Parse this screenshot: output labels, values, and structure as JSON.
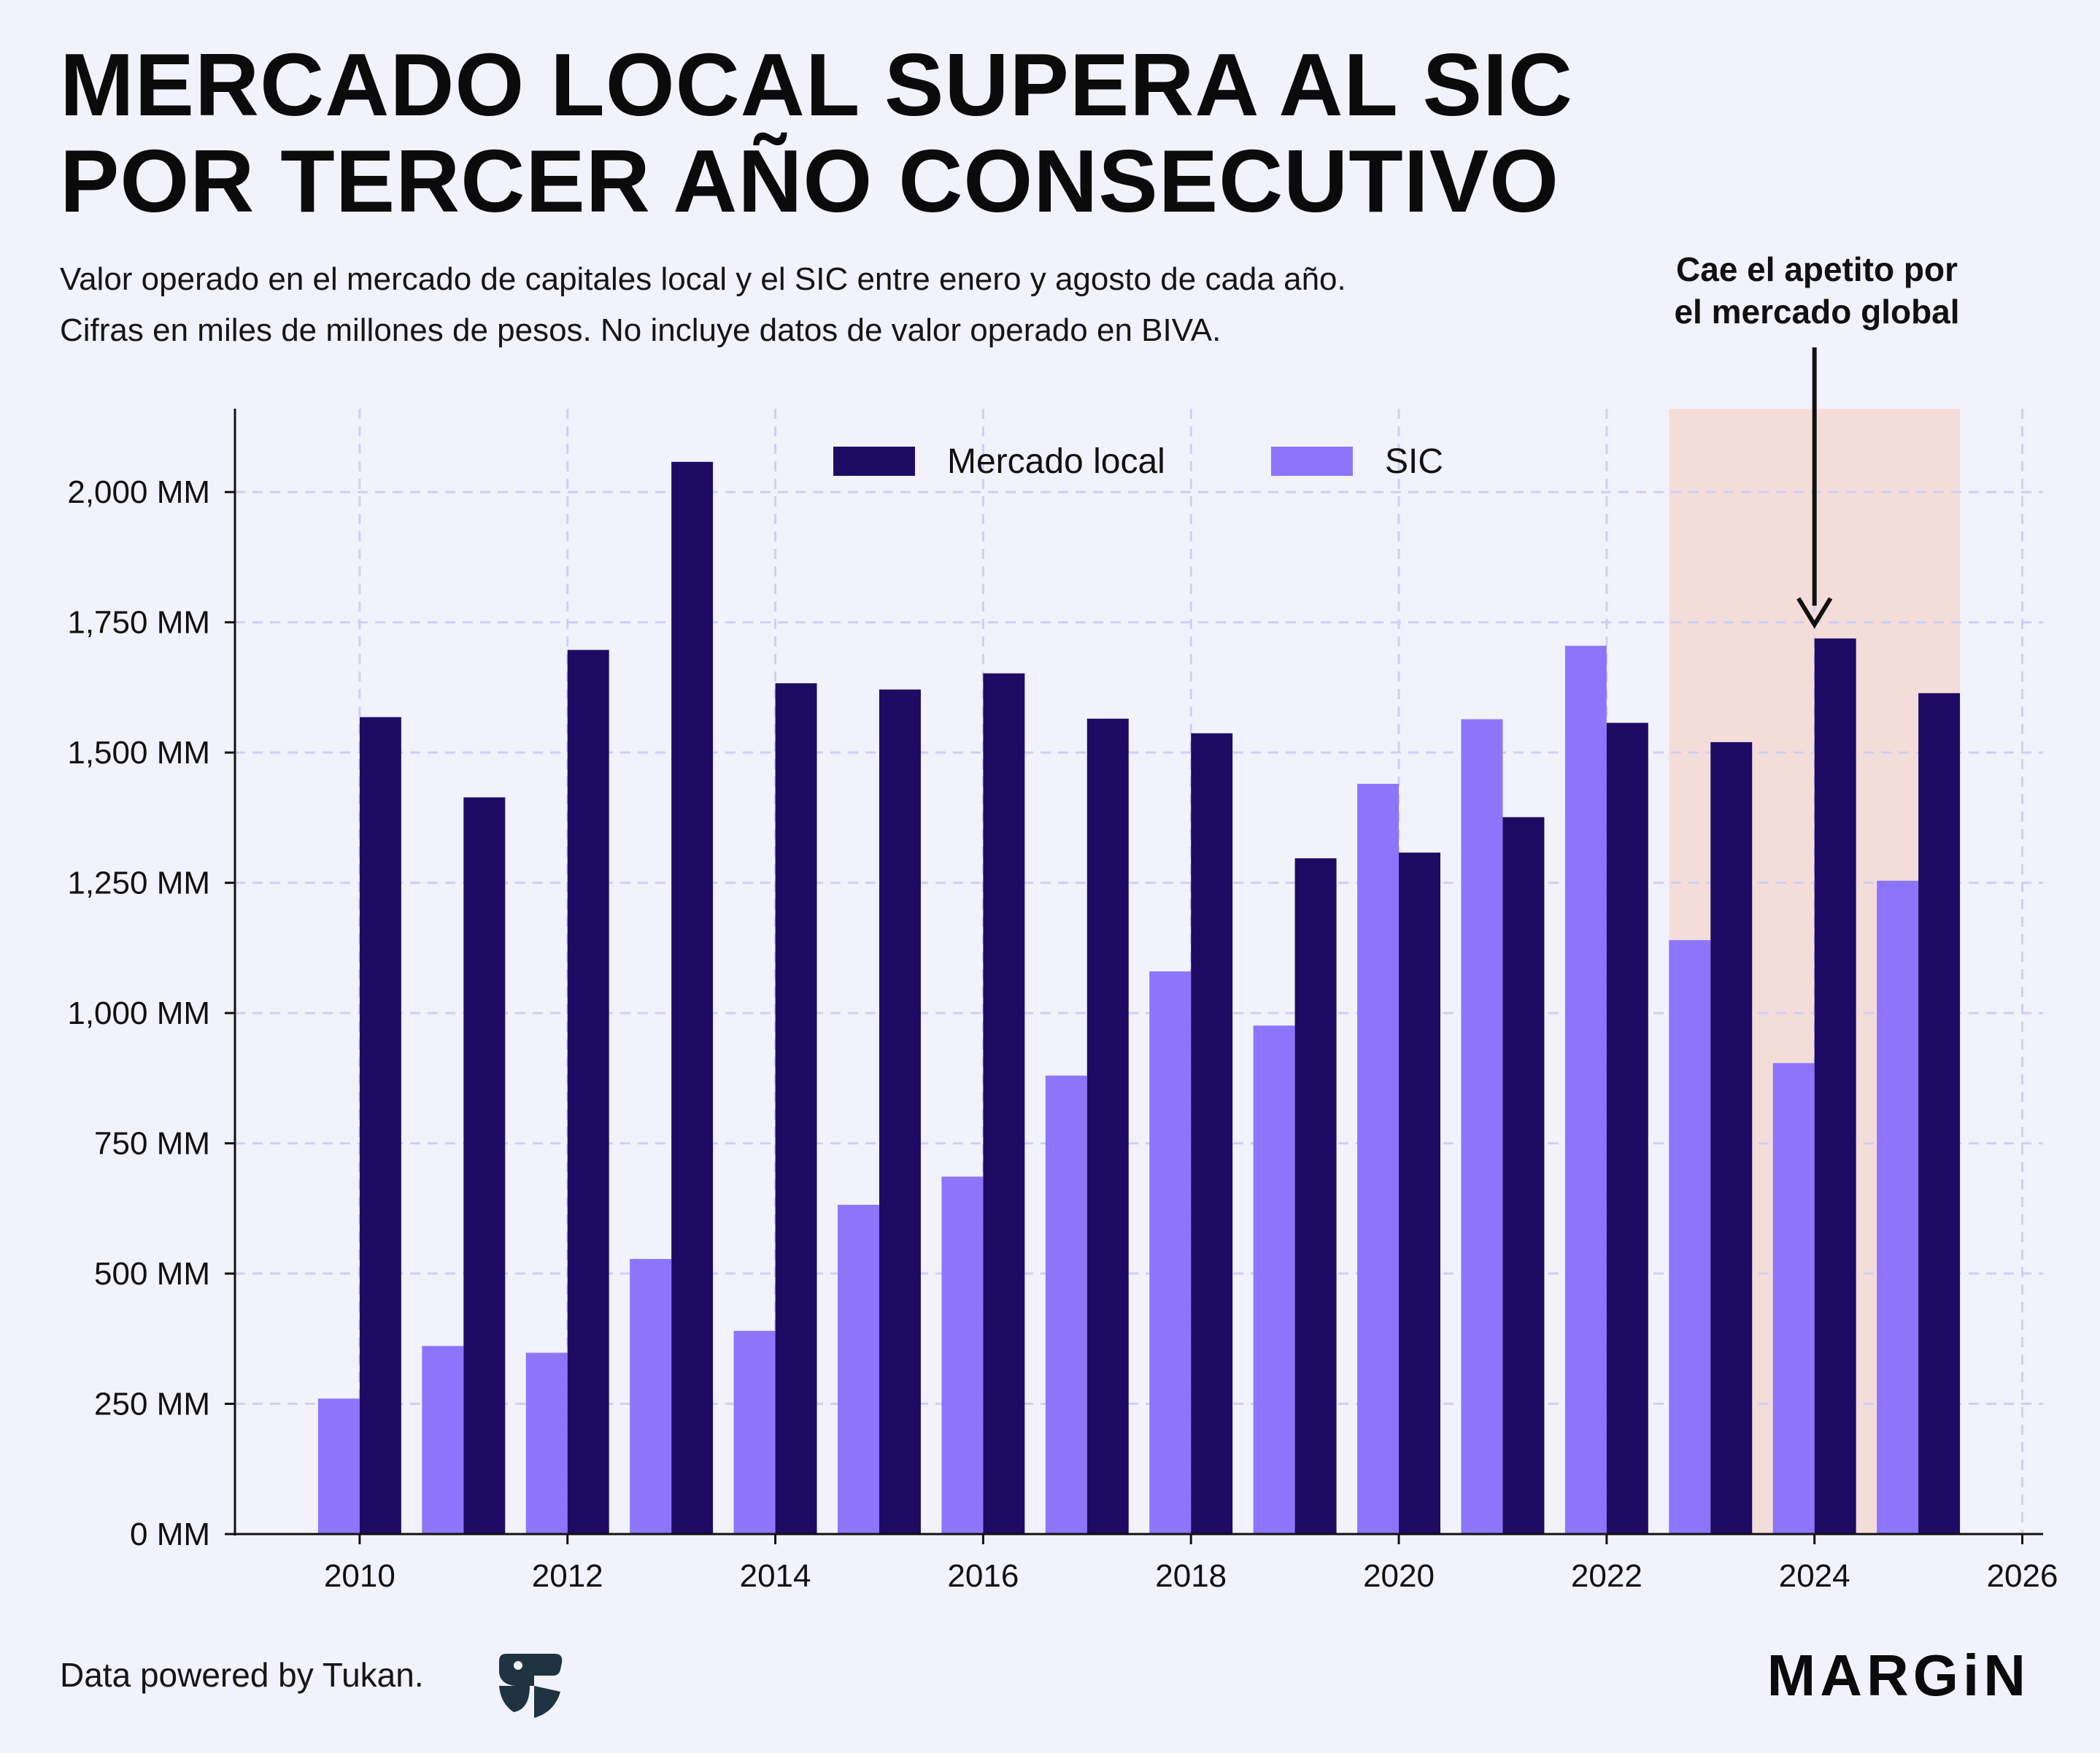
{
  "title": {
    "line1": "MERCADO LOCAL SUPERA AL SIC",
    "line2": "POR TERCER AÑO CONSECUTIVO"
  },
  "subtitle": {
    "line1": "Valor operado en el mercado de capitales local y el SIC entre enero y agosto de cada año.",
    "line2": "Cifras en miles de millones de pesos. No incluye datos de valor operado en BIVA."
  },
  "annotation": {
    "line1": "Cae el apetito por",
    "line2": "el mercado global"
  },
  "footer": {
    "credit": "Data powered by Tukan.",
    "brand": "MARGiN"
  },
  "colors": {
    "background": "#f2f2fc",
    "local": "#1e0b64",
    "sic": "#8d75fb",
    "highlight": "#f4ddd9",
    "grid": "#cfcff5",
    "axis": "#111111"
  },
  "icons": {
    "logo": "tukan-logo-icon",
    "arrow": "down-arrow-icon"
  },
  "chart_data": {
    "type": "bar",
    "x": [
      2010,
      2011,
      2012,
      2013,
      2014,
      2015,
      2016,
      2017,
      2018,
      2019,
      2020,
      2021,
      2022,
      2023,
      2024,
      2025
    ],
    "series": [
      {
        "name": "Mercado local",
        "color": "#1e0b64",
        "values": [
          1568,
          1414,
          1697,
          2058,
          1633,
          1621,
          1652,
          1565,
          1537,
          1297,
          1308,
          1376,
          1557,
          1520,
          1719,
          1614
        ]
      },
      {
        "name": "SIC",
        "color": "#8d75fb",
        "values": [
          260,
          361,
          348,
          528,
          390,
          632,
          686,
          880,
          1080,
          976,
          1440,
          1564,
          1705,
          1140,
          904,
          1254
        ]
      }
    ],
    "xlim": [
      2008.8,
      2026.2
    ],
    "ylim": [
      0,
      2160
    ],
    "xticks": [
      2010,
      2012,
      2014,
      2016,
      2018,
      2020,
      2022,
      2024,
      2026
    ],
    "yticks": [
      0,
      250,
      500,
      750,
      1000,
      1250,
      1500,
      1750,
      2000
    ],
    "ytick_labels": [
      "0 MM",
      "250 MM",
      "500 MM",
      "750 MM",
      "1,000 MM",
      "1,250 MM",
      "1,500 MM",
      "1,750 MM",
      "2,000 MM"
    ],
    "highlight_range": [
      2022.6,
      2025.4
    ],
    "annotation_x": 2024,
    "annotation_y": 1740,
    "grid": true,
    "legend": "top-center"
  }
}
